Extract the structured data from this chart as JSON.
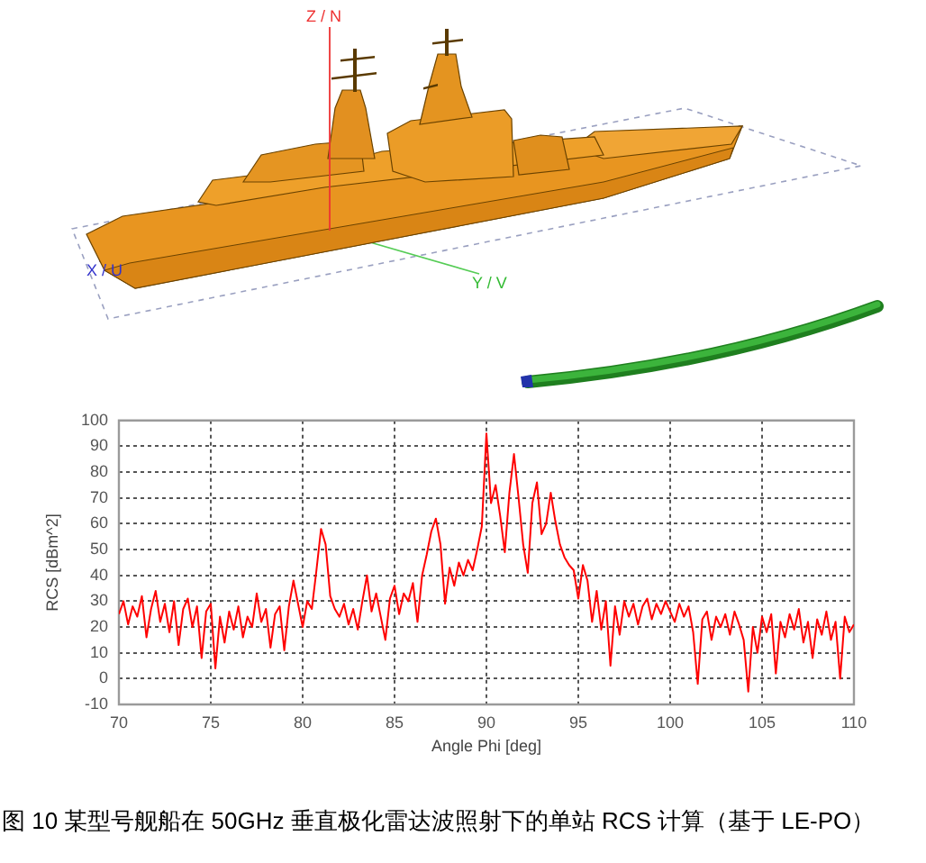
{
  "chart_data": {
    "type": "line",
    "xlabel": "Angle Phi [deg]",
    "ylabel": "RCS [dBm^2]",
    "annotations": [
      "Z / N",
      "X / U",
      "Y / V",
      "图 10 某型号舰船在 50GHz 垂直极化雷达波照射下的单站 RCS 计算（基于 LE-PO）"
    ],
    "x": [
      70,
      70.25,
      70.5,
      70.75,
      71,
      71.25,
      71.5,
      71.75,
      72,
      72.25,
      72.5,
      72.75,
      73,
      73.25,
      73.5,
      73.75,
      74,
      74.25,
      74.5,
      74.75,
      75,
      75.25,
      75.5,
      75.75,
      76,
      76.25,
      76.5,
      76.75,
      77,
      77.25,
      77.5,
      77.75,
      78,
      78.25,
      78.5,
      78.75,
      79,
      79.25,
      79.5,
      79.75,
      80,
      80.25,
      80.5,
      80.75,
      81,
      81.25,
      81.5,
      81.75,
      82,
      82.25,
      82.5,
      82.75,
      83,
      83.25,
      83.5,
      83.75,
      84,
      84.25,
      84.5,
      84.75,
      85,
      85.25,
      85.5,
      85.75,
      86,
      86.25,
      86.5,
      86.75,
      87,
      87.25,
      87.5,
      87.75,
      88,
      88.25,
      88.5,
      88.75,
      89,
      89.25,
      89.5,
      89.75,
      90,
      90.25,
      90.5,
      90.75,
      91,
      91.25,
      91.5,
      91.75,
      92,
      92.25,
      92.5,
      92.75,
      93,
      93.25,
      93.5,
      93.75,
      94,
      94.25,
      94.5,
      94.75,
      95,
      95.25,
      95.5,
      95.75,
      96,
      96.25,
      96.5,
      96.75,
      97,
      97.25,
      97.5,
      97.75,
      98,
      98.25,
      98.5,
      98.75,
      99,
      99.25,
      99.5,
      99.75,
      100,
      100.25,
      100.5,
      100.75,
      101,
      101.25,
      101.5,
      101.75,
      102,
      102.25,
      102.5,
      102.75,
      103,
      103.25,
      103.5,
      103.75,
      104,
      104.25,
      104.5,
      104.75,
      105,
      105.25,
      105.5,
      105.75,
      106,
      106.25,
      106.5,
      106.75,
      107,
      107.25,
      107.5,
      107.75,
      108,
      108.25,
      108.5,
      108.75,
      109,
      109.25,
      109.5,
      109.75,
      110
    ],
    "series": [
      {
        "color": "#ff0000",
        "values": [
          25,
          30,
          21,
          28,
          24,
          32,
          16,
          27,
          34,
          22,
          29,
          18,
          30,
          13,
          27,
          31,
          20,
          28,
          8,
          26,
          29,
          4,
          24,
          14,
          26,
          19,
          28,
          16,
          24,
          20,
          33,
          22,
          27,
          12,
          25,
          28,
          11,
          28,
          38,
          29,
          20,
          30,
          27,
          42,
          58,
          52,
          32,
          27,
          24,
          29,
          21,
          27,
          19,
          30,
          40,
          26,
          33,
          24,
          15,
          31,
          36,
          25,
          33,
          30,
          37,
          22,
          40,
          48,
          57,
          62,
          52,
          29,
          43,
          36,
          45,
          40,
          46,
          42,
          50,
          59,
          95,
          68,
          75,
          63,
          49,
          72,
          87,
          70,
          52,
          41,
          68,
          76,
          56,
          60,
          72,
          61,
          52,
          47,
          44,
          42,
          31,
          44,
          38,
          22,
          34,
          19,
          30,
          5,
          28,
          17,
          30,
          24,
          29,
          21,
          28,
          31,
          23,
          29,
          25,
          30,
          26,
          22,
          29,
          24,
          28,
          18,
          -2,
          23,
          26,
          15,
          24,
          20,
          25,
          17,
          26,
          21,
          15,
          -5,
          20,
          10,
          24,
          18,
          25,
          2,
          22,
          16,
          25,
          19,
          27,
          14,
          22,
          8,
          23,
          17,
          26,
          15,
          22,
          0,
          24,
          18,
          21
        ]
      }
    ],
    "xlim": [
      70,
      110
    ],
    "xticks": [
      70,
      75,
      80,
      85,
      90,
      95,
      100,
      105,
      110
    ],
    "ylim": [
      -10,
      100
    ],
    "yticks": [
      -10,
      0,
      10,
      20,
      30,
      40,
      50,
      60,
      70,
      80,
      90,
      100
    ],
    "grid": true,
    "legend": false,
    "marker": "none",
    "line_style": "solid"
  }
}
